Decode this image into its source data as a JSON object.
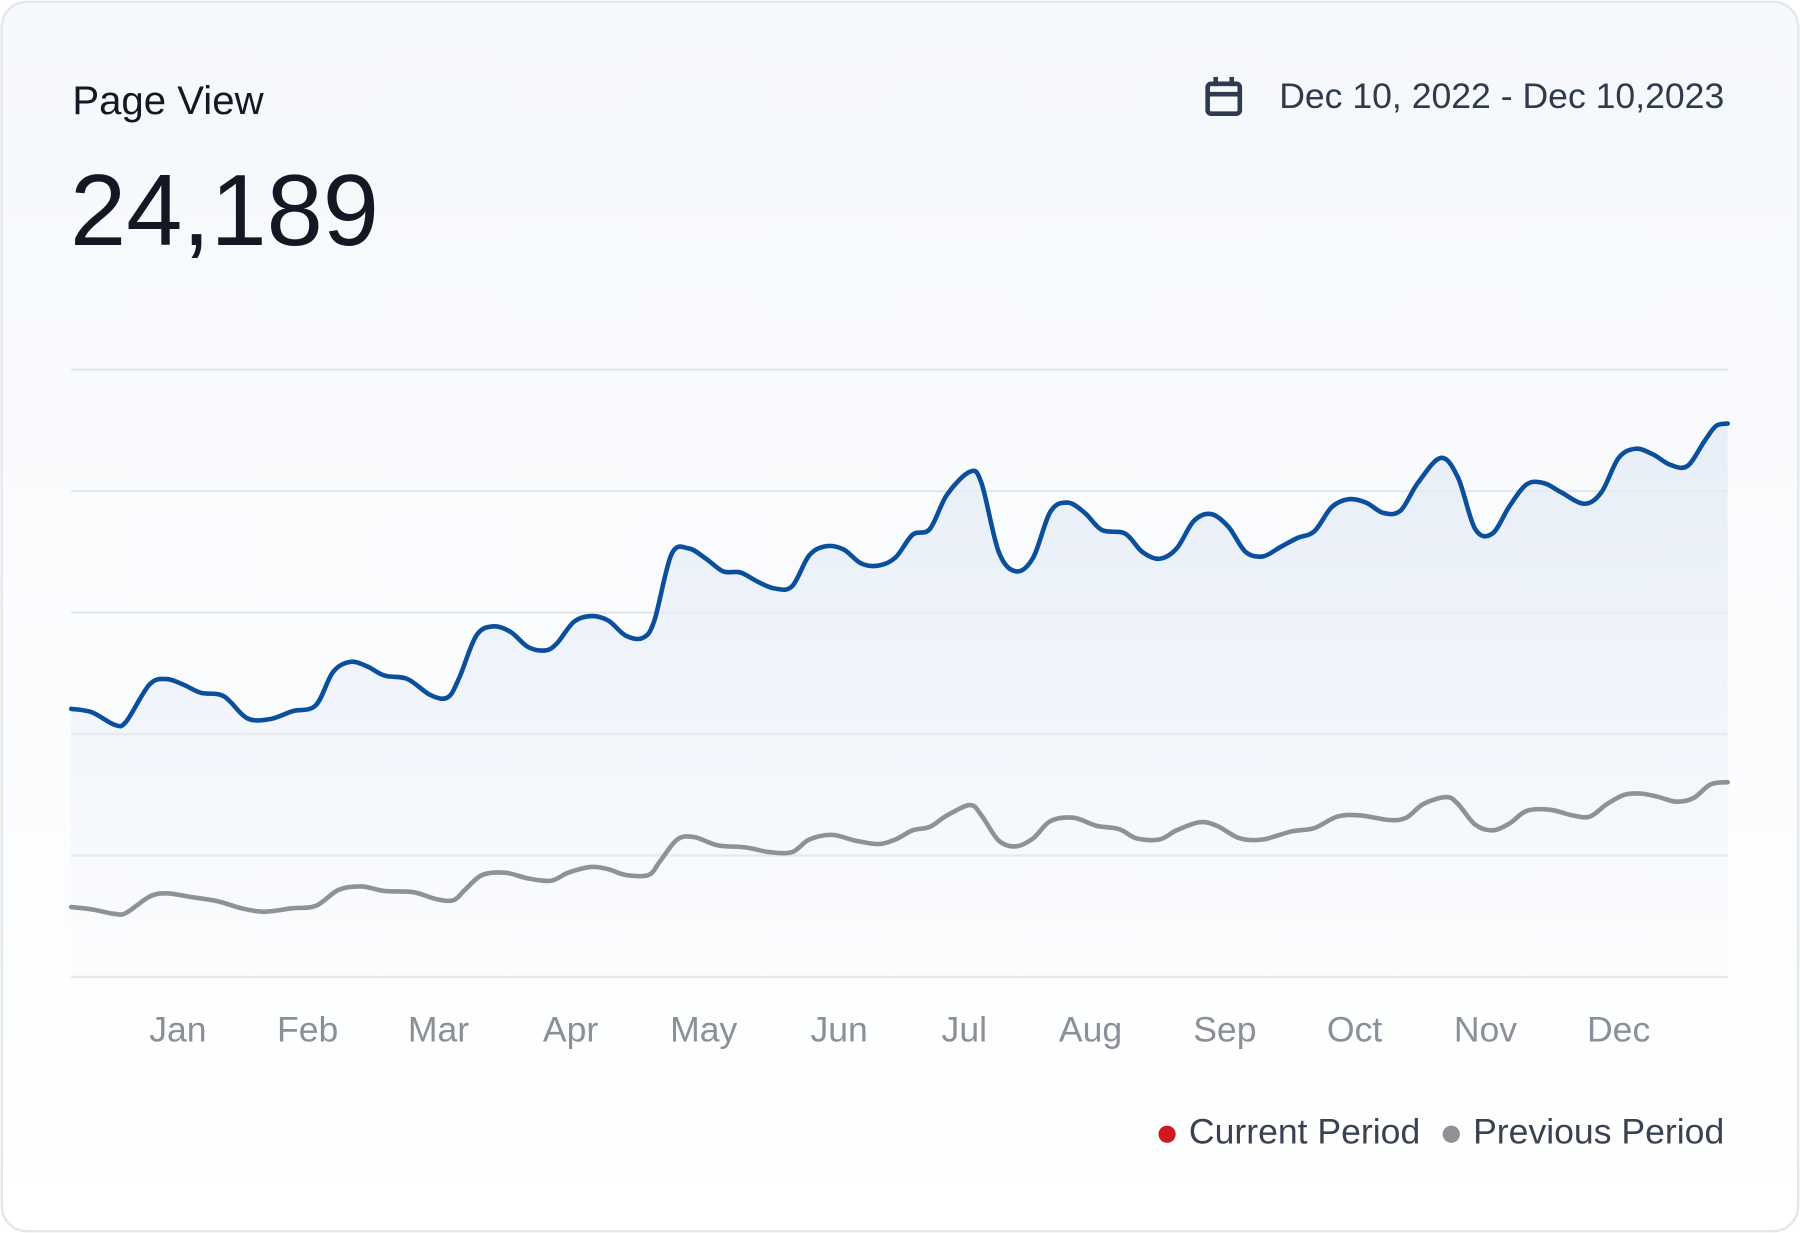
{
  "chart_data": {
    "type": "line",
    "title": "Page View",
    "total": "24,189",
    "date_range": "Dec 10, 2022 - Dec 10,2023",
    "xlim": [
      0,
      1443
    ],
    "xticks": [
      {
        "value": 93,
        "label": "Jan"
      },
      {
        "value": 206,
        "label": "Feb"
      },
      {
        "value": 320,
        "label": "Mar"
      },
      {
        "value": 435,
        "label": "Apr"
      },
      {
        "value": 551,
        "label": "May"
      },
      {
        "value": 669,
        "label": "Jun"
      },
      {
        "value": 778,
        "label": "Jul"
      },
      {
        "value": 888,
        "label": "Aug"
      },
      {
        "value": 1005,
        "label": "Sep"
      },
      {
        "value": 1118,
        "label": "Oct"
      },
      {
        "value": 1232,
        "label": "Nov"
      },
      {
        "value": 1348,
        "label": "Dec"
      }
    ],
    "ylim": [
      0,
      530
    ],
    "yticks": [
      0,
      106,
      212,
      318,
      424,
      530
    ],
    "grid": true,
    "area_fill": "#e6edf7",
    "series": [
      {
        "name": "Current Period",
        "color": "#0b4f9c",
        "legend_color": "#d0191f",
        "fill": true,
        "x": [
          0,
          18,
          38,
          48,
          68,
          83,
          98,
          113,
          133,
          153,
          173,
          193,
          213,
          228,
          243,
          258,
          273,
          293,
          313,
          328,
          338,
          353,
          368,
          383,
          398,
          413,
          423,
          438,
          453,
          468,
          483,
          498,
          508,
          523,
          538,
          553,
          568,
          583,
          598,
          613,
          628,
          643,
          658,
          673,
          688,
          703,
          718,
          733,
          748,
          763,
          783,
          793,
          808,
          823,
          838,
          853,
          868,
          883,
          898,
          918,
          933,
          948,
          963,
          978,
          993,
          1008,
          1023,
          1038,
          1053,
          1068,
          1083,
          1098,
          1113,
          1128,
          1143,
          1158,
          1173,
          1193,
          1208,
          1223,
          1238,
          1253,
          1268,
          1283,
          1298,
          1318,
          1333,
          1348,
          1363,
          1378,
          1393,
          1408,
          1423,
          1433,
          1443
        ],
        "values": [
          234,
          231,
          220,
          223,
          255,
          260,
          255,
          248,
          245,
          226,
          225,
          232,
          237,
          266,
          275,
          271,
          263,
          260,
          246,
          244,
          261,
          298,
          306,
          301,
          288,
          285,
          291,
          310,
          315,
          311,
          298,
          296,
          311,
          369,
          374,
          365,
          354,
          353,
          345,
          339,
          341,
          368,
          376,
          373,
          361,
          359,
          366,
          386,
          391,
          421,
          441,
          431,
          371,
          354,
          366,
          406,
          414,
          405,
          390,
          387,
          371,
          365,
          374,
          398,
          404,
          393,
          371,
          367,
          375,
          383,
          389,
          410,
          417,
          414,
          405,
          407,
          431,
          453,
          436,
          391,
          387,
          411,
          430,
          431,
          423,
          413,
          423,
          453,
          461,
          456,
          447,
          446,
          468,
          481,
          483
        ]
      },
      {
        "name": "Previous Period",
        "color": "#8e9196",
        "legend_color": "#8e9196",
        "fill": false,
        "x": [
          0,
          18,
          38,
          48,
          68,
          83,
          103,
          128,
          148,
          168,
          193,
          213,
          233,
          253,
          273,
          298,
          318,
          333,
          343,
          358,
          378,
          398,
          418,
          433,
          453,
          468,
          483,
          503,
          513,
          528,
          543,
          563,
          588,
          608,
          628,
          643,
          663,
          683,
          703,
          718,
          733,
          748,
          763,
          783,
          793,
          808,
          823,
          838,
          853,
          873,
          893,
          913,
          928,
          948,
          963,
          983,
          998,
          1018,
          1038,
          1063,
          1083,
          1103,
          1123,
          1148,
          1163,
          1178,
          1198,
          1208,
          1223,
          1238,
          1253,
          1268,
          1288,
          1308,
          1323,
          1338,
          1353,
          1368,
          1383,
          1398,
          1413,
          1428,
          1443
        ],
        "values": [
          61,
          59,
          55,
          56,
          70,
          73,
          70,
          66,
          60,
          57,
          60,
          62,
          76,
          79,
          75,
          74,
          68,
          67,
          76,
          89,
          91,
          86,
          84,
          91,
          96,
          94,
          89,
          89,
          101,
          120,
          122,
          115,
          113,
          109,
          109,
          120,
          124,
          119,
          116,
          120,
          128,
          131,
          141,
          150,
          141,
          119,
          114,
          121,
          136,
          139,
          132,
          129,
          121,
          120,
          128,
          135,
          132,
          121,
          120,
          127,
          130,
          140,
          141,
          137,
          139,
          151,
          157,
          151,
          133,
          128,
          134,
          145,
          146,
          141,
          140,
          151,
          159,
          160,
          157,
          153,
          156,
          168,
          170
        ]
      }
    ]
  }
}
